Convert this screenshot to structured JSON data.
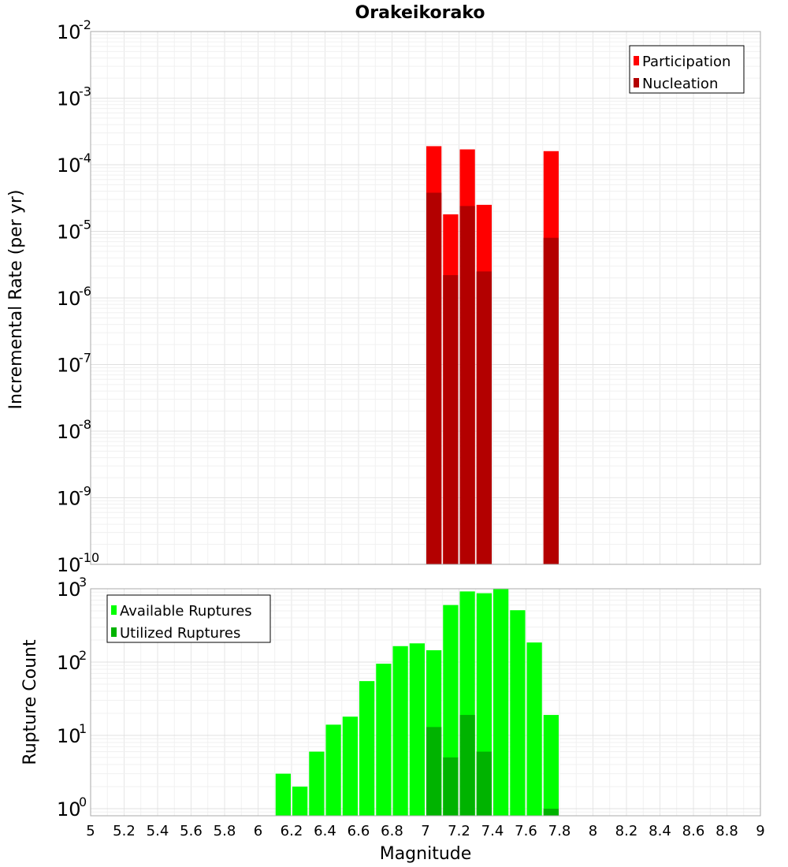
{
  "chart_data": [
    {
      "type": "bar",
      "title": "Orakeikorako",
      "xlabel": "",
      "ylabel": "Incremental Rate (per yr)",
      "yscale": "log",
      "xlim": [
        5,
        9
      ],
      "ylim": [
        1e-10,
        0.01
      ],
      "y_ticks": [
        {
          "base": "10",
          "exp": "-10"
        },
        {
          "base": "10",
          "exp": "-9"
        },
        {
          "base": "10",
          "exp": "-8"
        },
        {
          "base": "10",
          "exp": "-7"
        },
        {
          "base": "10",
          "exp": "-6"
        },
        {
          "base": "10",
          "exp": "-5"
        },
        {
          "base": "10",
          "exp": "-4"
        },
        {
          "base": "10",
          "exp": "-3"
        },
        {
          "base": "10",
          "exp": "-2"
        }
      ],
      "grid": true,
      "legend": "top-right",
      "series": [
        {
          "name": "Participation",
          "color": "#ff0000",
          "points": [
            [
              7.05,
              0.00019
            ],
            [
              7.15,
              1.8e-05
            ],
            [
              7.25,
              0.00017
            ],
            [
              7.35,
              2.5e-05
            ],
            [
              7.75,
              0.00016
            ]
          ]
        },
        {
          "name": "Nucleation",
          "color": "#b30000",
          "points": [
            [
              7.05,
              3.8e-05
            ],
            [
              7.15,
              2.2e-06
            ],
            [
              7.25,
              2.4e-05
            ],
            [
              7.35,
              2.5e-06
            ],
            [
              7.75,
              8e-06
            ]
          ]
        }
      ]
    },
    {
      "type": "bar",
      "title": "",
      "xlabel": "Magnitude",
      "ylabel": "Rupture Count",
      "yscale": "log",
      "xlim": [
        5,
        9
      ],
      "ylim": [
        0.8,
        1000
      ],
      "x_ticks": [
        "5",
        "5.2",
        "5.4",
        "5.6",
        "5.8",
        "6",
        "6.2",
        "6.4",
        "6.6",
        "6.8",
        "7",
        "7.2",
        "7.4",
        "7.6",
        "7.8",
        "8",
        "8.2",
        "8.4",
        "8.6",
        "8.8",
        "9"
      ],
      "y_ticks": [
        {
          "base": "10",
          "exp": "0"
        },
        {
          "base": "10",
          "exp": "1"
        },
        {
          "base": "10",
          "exp": "2"
        },
        {
          "base": "10",
          "exp": "3"
        }
      ],
      "grid": true,
      "legend": "top-left",
      "series": [
        {
          "name": "Available Ruptures",
          "color": "#00ff00",
          "points": [
            [
              6.15,
              3
            ],
            [
              6.25,
              2
            ],
            [
              6.35,
              6
            ],
            [
              6.45,
              14
            ],
            [
              6.55,
              18
            ],
            [
              6.65,
              55
            ],
            [
              6.75,
              95
            ],
            [
              6.85,
              165
            ],
            [
              6.95,
              180
            ],
            [
              7.05,
              145
            ],
            [
              7.15,
              600
            ],
            [
              7.25,
              920
            ],
            [
              7.35,
              870
            ],
            [
              7.45,
              1000
            ],
            [
              7.55,
              510
            ],
            [
              7.65,
              185
            ],
            [
              7.75,
              19
            ]
          ]
        },
        {
          "name": "Utilized Ruptures",
          "color": "#00b300",
          "points": [
            [
              7.05,
              13
            ],
            [
              7.15,
              5
            ],
            [
              7.25,
              19
            ],
            [
              7.35,
              6
            ],
            [
              7.75,
              1
            ]
          ]
        }
      ]
    }
  ]
}
